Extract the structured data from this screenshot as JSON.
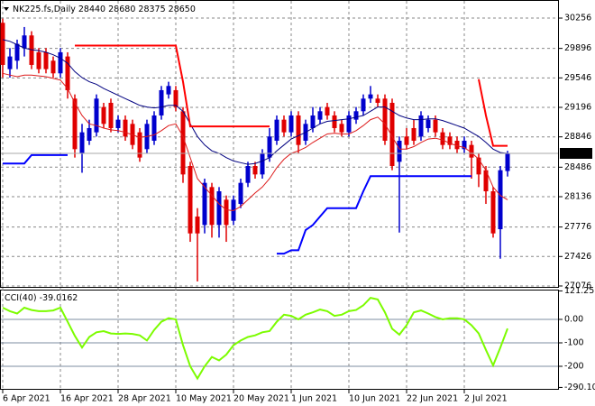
{
  "chart_data": [
    {
      "type": "candlestick",
      "title": "NK225.fs,Daily",
      "categories": [
        "6 Apr 2021",
        null,
        null,
        null,
        null,
        null,
        null,
        null,
        "16 Apr 2021",
        null,
        null,
        null,
        null,
        null,
        null,
        null,
        "28 Apr 2021",
        null,
        null,
        null,
        null,
        null,
        null,
        null,
        "10 May 2021",
        null,
        null,
        null,
        null,
        null,
        null,
        null,
        "20 May 2021",
        null,
        null,
        null,
        null,
        null,
        null,
        null,
        "1 Jun 2021",
        null,
        null,
        null,
        null,
        null,
        null,
        null,
        "10 Jun 2021",
        null,
        null,
        null,
        null,
        null,
        null,
        null,
        "22 Jun 2021",
        null,
        null,
        null,
        null,
        null,
        null,
        null,
        "2 Jul 2021",
        null,
        null,
        null,
        null,
        null,
        null
      ],
      "open": [
        30200,
        29650,
        29750,
        29900,
        30050,
        29850,
        29850,
        29750,
        29600,
        29800,
        29300,
        28650,
        28800,
        28900,
        29200,
        29250,
        28950,
        29050,
        29000,
        28900,
        28700,
        28800,
        29100,
        29350,
        29400,
        29150,
        28500,
        27900,
        27800,
        28250,
        27800,
        28100,
        27850,
        28050,
        28300,
        28500,
        28400,
        28600,
        28800,
        29050,
        28900,
        29100,
        28800,
        28950,
        29050,
        29200,
        29100,
        29000,
        28900,
        29050,
        29150,
        29300,
        29300,
        29300,
        29250,
        28550,
        28850,
        28950,
        28850,
        28950,
        29050,
        28900,
        28850,
        28800,
        28700,
        28750,
        28600,
        28450,
        28200,
        27750,
        28440
      ],
      "high": [
        30250,
        29900,
        30000,
        30150,
        30100,
        29900,
        29900,
        29800,
        29900,
        29850,
        29350,
        29000,
        29050,
        29350,
        29250,
        29300,
        29100,
        29100,
        29050,
        28950,
        29050,
        29150,
        29450,
        29500,
        29450,
        29200,
        28550,
        28000,
        28350,
        28300,
        28250,
        28150,
        28150,
        28350,
        28550,
        28550,
        28700,
        28950,
        29100,
        29100,
        29150,
        29150,
        29050,
        29200,
        29200,
        29250,
        29150,
        29050,
        29150,
        29200,
        29350,
        29450,
        29350,
        29350,
        29300,
        28850,
        28950,
        29050,
        29150,
        29100,
        29100,
        28950,
        28900,
        28850,
        28850,
        28800,
        28650,
        28500,
        28250,
        28500,
        28680
      ],
      "low": [
        29550,
        29550,
        29650,
        29800,
        29650,
        29600,
        29600,
        29550,
        29550,
        29300,
        28600,
        28420,
        28750,
        28850,
        28950,
        28900,
        28900,
        28800,
        28700,
        28550,
        28650,
        28750,
        29050,
        29300,
        29150,
        28300,
        27600,
        27130,
        27700,
        27650,
        27650,
        27600,
        27800,
        28000,
        28250,
        28350,
        28350,
        28550,
        28750,
        28850,
        28850,
        28650,
        28750,
        28900,
        29000,
        29050,
        28900,
        28850,
        28850,
        29000,
        29100,
        29250,
        29200,
        28750,
        28450,
        27710,
        28700,
        28750,
        28800,
        28900,
        28850,
        28700,
        28700,
        28650,
        28650,
        28350,
        28250,
        28050,
        27650,
        27400,
        28375
      ],
      "close": [
        29700,
        29800,
        29950,
        30050,
        29700,
        29650,
        29650,
        29600,
        29850,
        29400,
        28700,
        28900,
        28950,
        29300,
        29000,
        28950,
        29050,
        28850,
        28750,
        28600,
        29000,
        29100,
        29400,
        29450,
        29200,
        28400,
        27700,
        27700,
        28300,
        27800,
        28200,
        27800,
        28100,
        28300,
        28500,
        28400,
        28650,
        28850,
        29050,
        28900,
        29100,
        28750,
        29000,
        29100,
        29150,
        29100,
        28950,
        28900,
        29100,
        29150,
        29300,
        29350,
        29250,
        28800,
        28500,
        28800,
        28750,
        28800,
        29100,
        29050,
        28900,
        28750,
        28750,
        28700,
        28800,
        28600,
        28400,
        28200,
        27700,
        28450,
        28650
      ],
      "up_color": "#0000cd",
      "down_color": "#e00000",
      "series": [
        {
          "color": "#000080",
          "values": [
            30000,
            29980,
            29940,
            29900,
            29880,
            29870,
            29850,
            29820,
            29780,
            29720,
            29620,
            29550,
            29500,
            29470,
            29420,
            29380,
            29340,
            29300,
            29260,
            29220,
            29200,
            29190,
            29200,
            29220,
            29220,
            29150,
            29000,
            28850,
            28750,
            28680,
            28650,
            28600,
            28560,
            28540,
            28520,
            28530,
            28560,
            28600,
            28680,
            28750,
            28820,
            28860,
            28900,
            28950,
            29000,
            29030,
            29040,
            29050,
            29060,
            29080,
            29100,
            29150,
            29200,
            29200,
            29150,
            29100,
            29070,
            29050,
            29050,
            29060,
            29060,
            29040,
            29010,
            28980,
            28950,
            28900,
            28850,
            28780,
            28700,
            28660,
            28650
          ]
        },
        {
          "color": "#dd1a1a",
          "values": [
            29600,
            29580,
            29560,
            29580,
            29580,
            29570,
            29560,
            29540,
            29520,
            29420,
            29250,
            29100,
            29000,
            28980,
            28950,
            28930,
            28920,
            28900,
            28870,
            28840,
            28850,
            28870,
            28920,
            28980,
            29000,
            28850,
            28600,
            28350,
            28250,
            28150,
            28050,
            27980,
            27970,
            28020,
            28100,
            28180,
            28250,
            28350,
            28480,
            28580,
            28650,
            28680,
            28720,
            28780,
            28830,
            28880,
            28890,
            28880,
            28880,
            28920,
            28980,
            29050,
            29080,
            29000,
            28850,
            28700,
            28700,
            28730,
            28780,
            28820,
            28830,
            28810,
            28770,
            28740,
            28720,
            28660,
            28580,
            28450,
            28250,
            28150,
            28100
          ]
        },
        {
          "color": "#0000ff",
          "width": 2,
          "values": [
            28530,
            28530,
            28530,
            28530,
            28630,
            28630,
            28630,
            28630,
            28630,
            28630,
            null,
            null,
            null,
            null,
            null,
            null,
            null,
            null,
            null,
            null,
            null,
            null,
            null,
            null,
            null,
            null,
            null,
            null,
            null,
            null,
            null,
            null,
            null,
            null,
            null,
            null,
            null,
            null,
            27460,
            27460,
            27500,
            27500,
            27740,
            27800,
            27900,
            28000,
            28000,
            28000,
            28000,
            28000,
            28200,
            28380,
            28380,
            28380,
            28380,
            28380,
            28380,
            28380,
            28380,
            28380,
            28380,
            28380,
            28380,
            28380,
            28380,
            28380,
            null,
            null,
            null,
            null,
            null
          ]
        },
        {
          "color": "#ff0000",
          "width": 2,
          "values": [
            null,
            null,
            null,
            null,
            null,
            null,
            null,
            null,
            null,
            null,
            29930,
            29930,
            29930,
            29930,
            29930,
            29930,
            29930,
            29930,
            29930,
            29930,
            29930,
            29930,
            29930,
            29930,
            29930,
            29500,
            28970,
            28970,
            28970,
            28970,
            28970,
            28970,
            28970,
            28970,
            28970,
            28970,
            28970,
            28970,
            null,
            null,
            null,
            null,
            null,
            null,
            null,
            null,
            null,
            null,
            null,
            null,
            null,
            null,
            null,
            null,
            null,
            null,
            null,
            null,
            null,
            null,
            null,
            null,
            null,
            null,
            null,
            null,
            29530,
            29100,
            28740,
            28740,
            28740
          ]
        }
      ],
      "ylim": [
        27065,
        30417
      ],
      "yticks": [
        30256,
        29896,
        29546,
        29196,
        28846,
        28486,
        28136,
        27776,
        27426,
        27076
      ],
      "grid": true
    },
    {
      "type": "line",
      "title": "CCI(40)",
      "color": "#7cfc00",
      "values": [
        50,
        35,
        25,
        50,
        40,
        35,
        35,
        38,
        50,
        -10,
        -70,
        -120,
        -75,
        -55,
        -50,
        -60,
        -62,
        -60,
        -62,
        -68,
        -90,
        -45,
        -10,
        5,
        0,
        -110,
        -200,
        -252,
        -200,
        -160,
        -175,
        -150,
        -110,
        -90,
        -75,
        -68,
        -55,
        -50,
        -10,
        20,
        15,
        0,
        20,
        30,
        42,
        35,
        15,
        20,
        35,
        40,
        60,
        92,
        85,
        30,
        -40,
        -65,
        -25,
        30,
        38,
        25,
        10,
        0,
        5,
        5,
        0,
        -25,
        -60,
        -130,
        -196,
        -120,
        -39.0162
      ],
      "ylim": [
        -300,
        123
      ],
      "yticks": [
        121.2519,
        {
          "value": 0,
          "label": "0.00"
        },
        -100,
        -200,
        -290.103
      ]
    }
  ]
}
